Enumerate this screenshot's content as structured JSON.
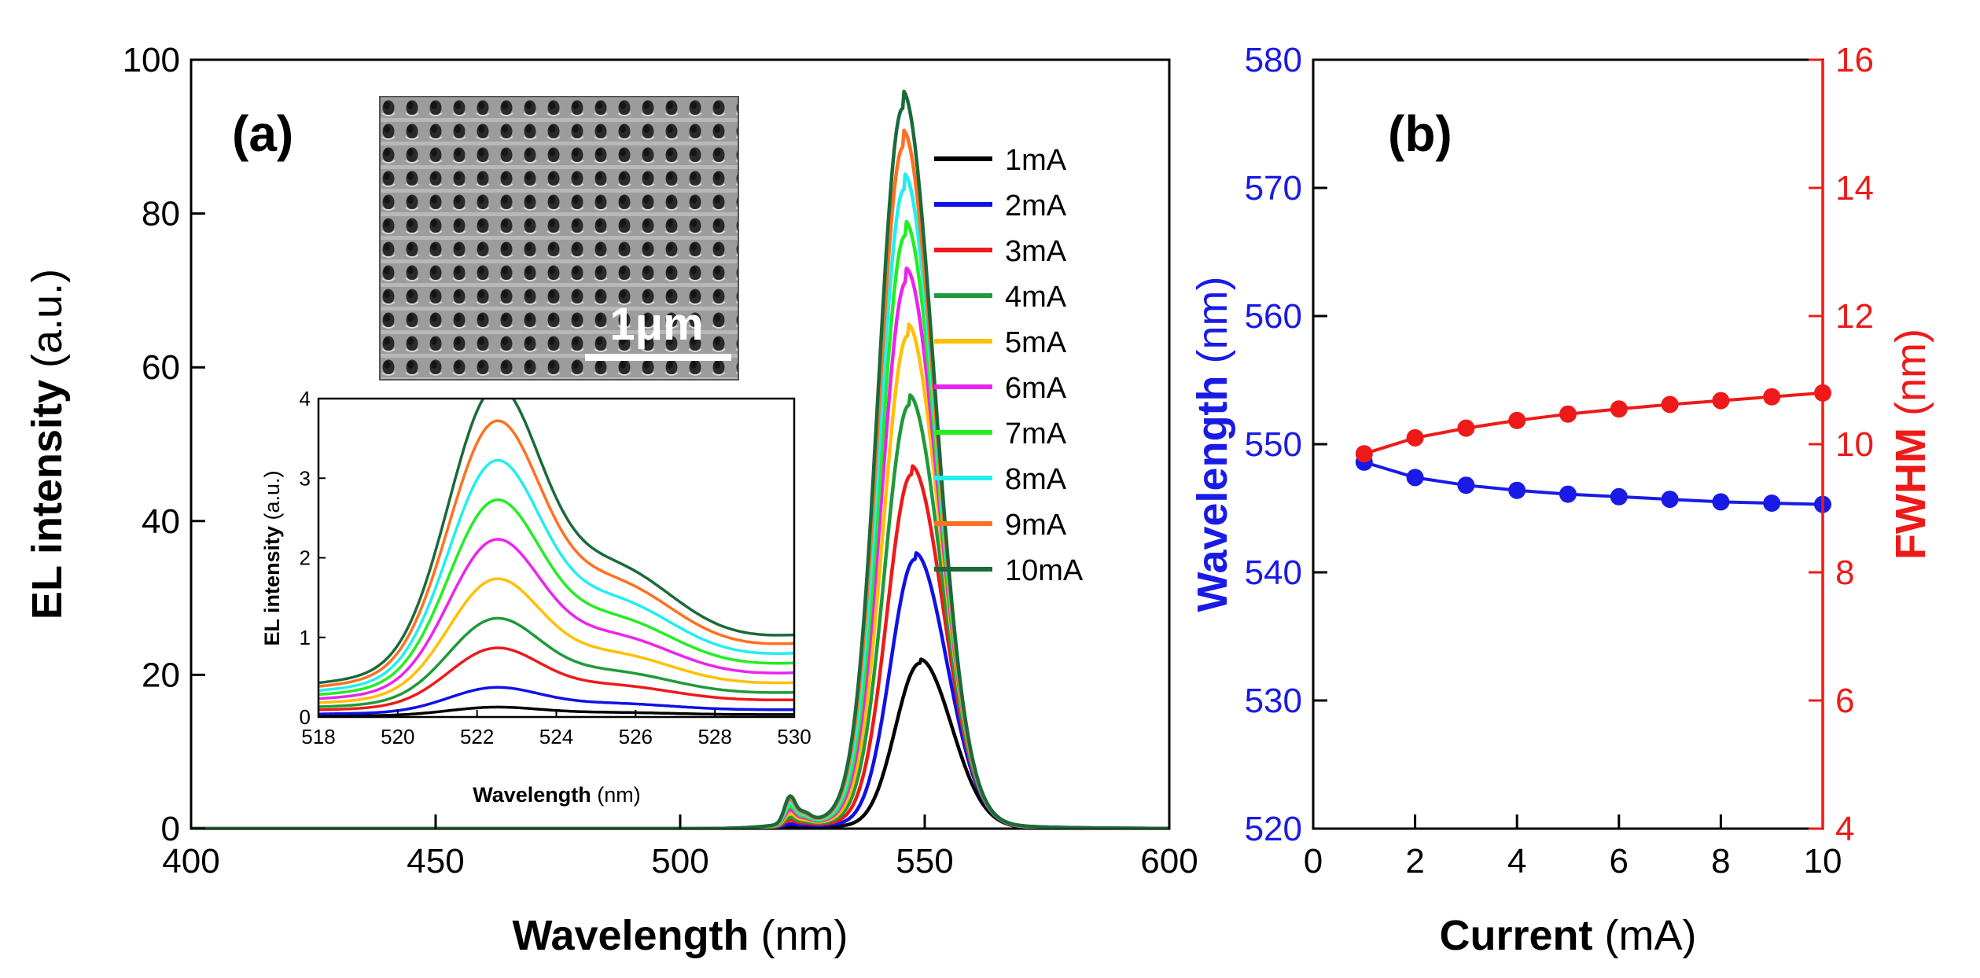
{
  "colors": {
    "currents": [
      "#000000",
      "#1010e6",
      "#ee1a1a",
      "#1f9a3a",
      "#ffc000",
      "#ee22ee",
      "#22ee22",
      "#22eeee",
      "#ff7020",
      "#1a6a3a"
    ],
    "wavelength": "#1a1ae6",
    "fwhm": "#ee1a1a"
  },
  "chart_data": [
    {
      "id": "a",
      "type": "line",
      "panel_label": "(a)",
      "xlabel_bold": "Wavelength",
      "xlabel_unit": " (nm)",
      "ylabel_bold": "EL intensity",
      "ylabel_unit": " (a.u.)",
      "xlim": [
        400,
        600
      ],
      "ylim": [
        0,
        100
      ],
      "xticks": [
        "400",
        "450",
        "500",
        "550",
        "600"
      ],
      "yticks": [
        "0",
        "20",
        "40",
        "60",
        "80",
        "100"
      ],
      "series": [
        {
          "name": "1mA",
          "peak_nm": 549.0,
          "peak_intensity": 21.5,
          "shoulder_intensity": 0.1
        },
        {
          "name": "2mA",
          "peak_nm": 548.0,
          "peak_intensity": 35.0,
          "shoulder_intensity": 0.3
        },
        {
          "name": "3mA",
          "peak_nm": 547.3,
          "peak_intensity": 46.0,
          "shoulder_intensity": 0.7
        },
        {
          "name": "4mA",
          "peak_nm": 546.8,
          "peak_intensity": 55.0,
          "shoulder_intensity": 1.0
        },
        {
          "name": "5mA",
          "peak_nm": 546.5,
          "peak_intensity": 64.0,
          "shoulder_intensity": 1.4
        },
        {
          "name": "6mA",
          "peak_nm": 546.2,
          "peak_intensity": 71.0,
          "shoulder_intensity": 1.8
        },
        {
          "name": "7mA",
          "peak_nm": 546.0,
          "peak_intensity": 77.0,
          "shoulder_intensity": 2.2
        },
        {
          "name": "8mA",
          "peak_nm": 545.8,
          "peak_intensity": 83.0,
          "shoulder_intensity": 2.6
        },
        {
          "name": "9mA",
          "peak_nm": 545.6,
          "peak_intensity": 88.5,
          "shoulder_intensity": 3.0
        },
        {
          "name": "10mA",
          "peak_nm": 545.5,
          "peak_intensity": 93.5,
          "shoulder_intensity": 3.35
        }
      ],
      "legend_position": "top-right",
      "inset": {
        "type": "line",
        "xlabel_bold": "Wavelength",
        "xlabel_unit": " (nm)",
        "ylabel_bold": "EL intensity",
        "ylabel_unit": " (a.u.)",
        "xlim": [
          518,
          530
        ],
        "ylim": [
          0,
          4
        ],
        "xticks": [
          "518",
          "520",
          "522",
          "524",
          "526",
          "528",
          "530"
        ],
        "yticks": [
          "0",
          "1",
          "2",
          "3",
          "4"
        ]
      },
      "sem_image": {
        "scale_bar_label": "1μm"
      }
    },
    {
      "id": "b",
      "type": "scatter",
      "panel_label": "(b)",
      "xlabel_bold": "Current",
      "xlabel_unit": " (mA)",
      "ylabel_left_bold": "Wavelength",
      "ylabel_left_unit": " (nm)",
      "ylabel_right_bold": "FWHM",
      "ylabel_right_unit": " (nm)",
      "xlim": [
        0,
        10
      ],
      "ylim_left": [
        520,
        580
      ],
      "ylim_right": [
        4,
        16
      ],
      "xticks": [
        "0",
        "2",
        "4",
        "6",
        "8",
        "10"
      ],
      "yticks_left": [
        "520",
        "530",
        "540",
        "550",
        "560",
        "570",
        "580"
      ],
      "yticks_right": [
        "4",
        "6",
        "8",
        "10",
        "12",
        "14",
        "16"
      ],
      "x": [
        1,
        2,
        3,
        4,
        5,
        6,
        7,
        8,
        9,
        10
      ],
      "series": [
        {
          "name": "Wavelength",
          "axis": "left",
          "values": [
            548.6,
            547.4,
            546.8,
            546.4,
            546.1,
            545.9,
            545.7,
            545.5,
            545.4,
            545.3
          ]
        },
        {
          "name": "FWHM",
          "axis": "right",
          "values": [
            9.85,
            10.1,
            10.25,
            10.37,
            10.47,
            10.55,
            10.62,
            10.68,
            10.74,
            10.8
          ]
        }
      ]
    }
  ]
}
